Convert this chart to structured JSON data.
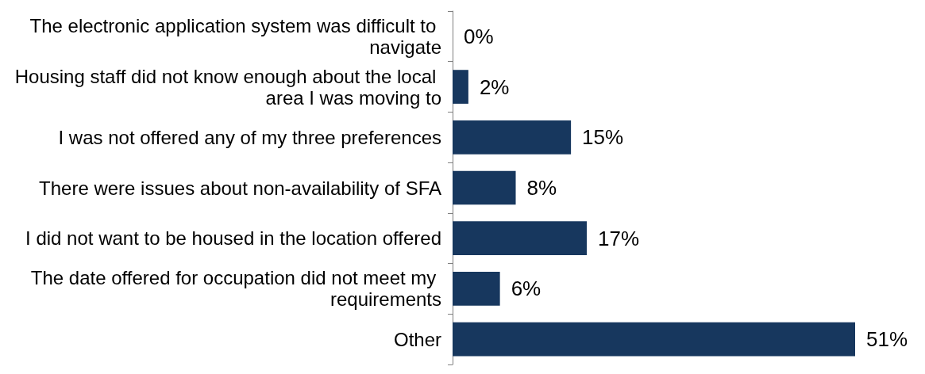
{
  "chart_data": {
    "type": "bar",
    "orientation": "horizontal",
    "categories": [
      "The electronic application system was difficult to navigate",
      "Housing staff did not know enough about the local area I was moving to",
      "I was not offered any of my three preferences",
      "There were issues about non-availability of SFA",
      "I did not want to be housed in the location offered",
      "The date offered for occupation did not meet my requirements",
      "Other"
    ],
    "values": [
      0,
      2,
      15,
      8,
      17,
      6,
      51
    ],
    "value_labels": [
      "0%",
      "2%",
      "15%",
      "8%",
      "17%",
      "6%",
      "51%"
    ],
    "color": "#17375e"
  }
}
